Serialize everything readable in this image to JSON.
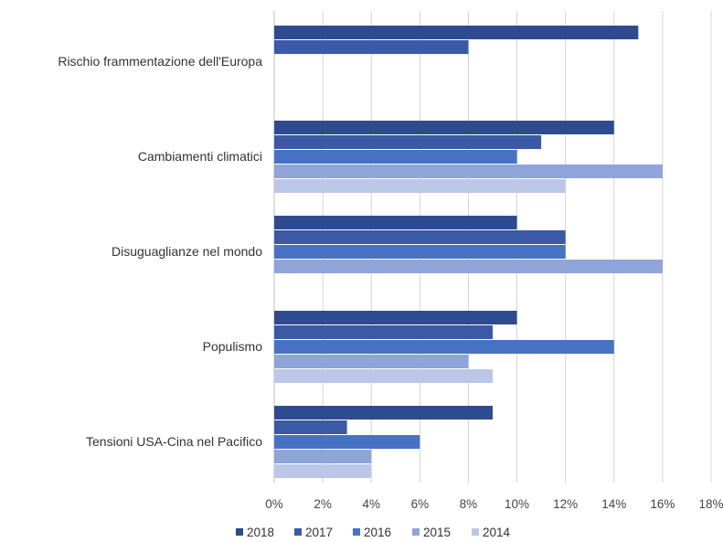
{
  "chart_data": {
    "type": "bar",
    "orientation": "horizontal",
    "categories": [
      "Rischio frammentazione dell'Europa",
      "Cambiamenti climatici",
      "Disuguaglianze nel mondo",
      "Populismo",
      "Tensioni USA-Cina nel Pacifico"
    ],
    "series": [
      {
        "name": "2018",
        "color": "#2f4b8f",
        "values": [
          15,
          14,
          10,
          10,
          9
        ]
      },
      {
        "name": "2017",
        "color": "#3a5aa6",
        "values": [
          8,
          11,
          12,
          9,
          3
        ]
      },
      {
        "name": "2016",
        "color": "#4772c4",
        "values": [
          null,
          10,
          12,
          14,
          6
        ]
      },
      {
        "name": "2015",
        "color": "#8fa4d8",
        "values": [
          null,
          16,
          16,
          8,
          4
        ]
      },
      {
        "name": "2014",
        "color": "#bcc7e8",
        "values": [
          null,
          12,
          null,
          9,
          4
        ]
      }
    ],
    "x_ticks": [
      "0%",
      "2%",
      "4%",
      "6%",
      "8%",
      "10%",
      "12%",
      "14%",
      "16%",
      "18%"
    ],
    "xlim": [
      0,
      18
    ],
    "grid": "vertical",
    "legend_position": "bottom"
  }
}
